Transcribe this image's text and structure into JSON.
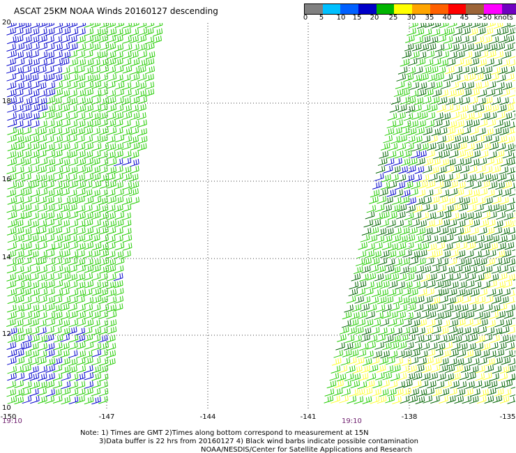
{
  "title": "ASCAT 25KM NOAA Winds 20160127 descending",
  "colorbar": {
    "labels": [
      "0",
      "5",
      "10",
      "15",
      "20",
      "25",
      "30",
      "35",
      "40",
      "45",
      ">50 knots"
    ],
    "colors": [
      "#808080",
      "#00c0ff",
      "#0060ff",
      "#0000c8",
      "#00b400",
      "#ffff00",
      "#ffa500",
      "#ff6000",
      "#ff0000",
      "#9c6438",
      "#ff00ff",
      "#7000c0",
      "#400080"
    ]
  },
  "lat_labels": [
    "20",
    "18",
    "16",
    "14",
    "12",
    "10"
  ],
  "lon_labels": [
    "-150",
    "-147",
    "-144",
    "-141",
    "-138",
    "-135"
  ],
  "time_labels": [
    "19:10",
    "19:10"
  ],
  "notes": {
    "line1": "Note: 1) Times are GMT 2)Times along bottom correspond to measurement at 15N",
    "line2": "3)Data buffer is 22 hrs from 20160127 4) Black wind barbs indicate possible contamination",
    "line3": "NOAA/NESDIS/Center for Satellite Applications and Research"
  },
  "barb_colors": {
    "green": "#22cc00",
    "blue": "#0000cc",
    "darkgreen": "#006400",
    "yellow": "#ffff33"
  }
}
